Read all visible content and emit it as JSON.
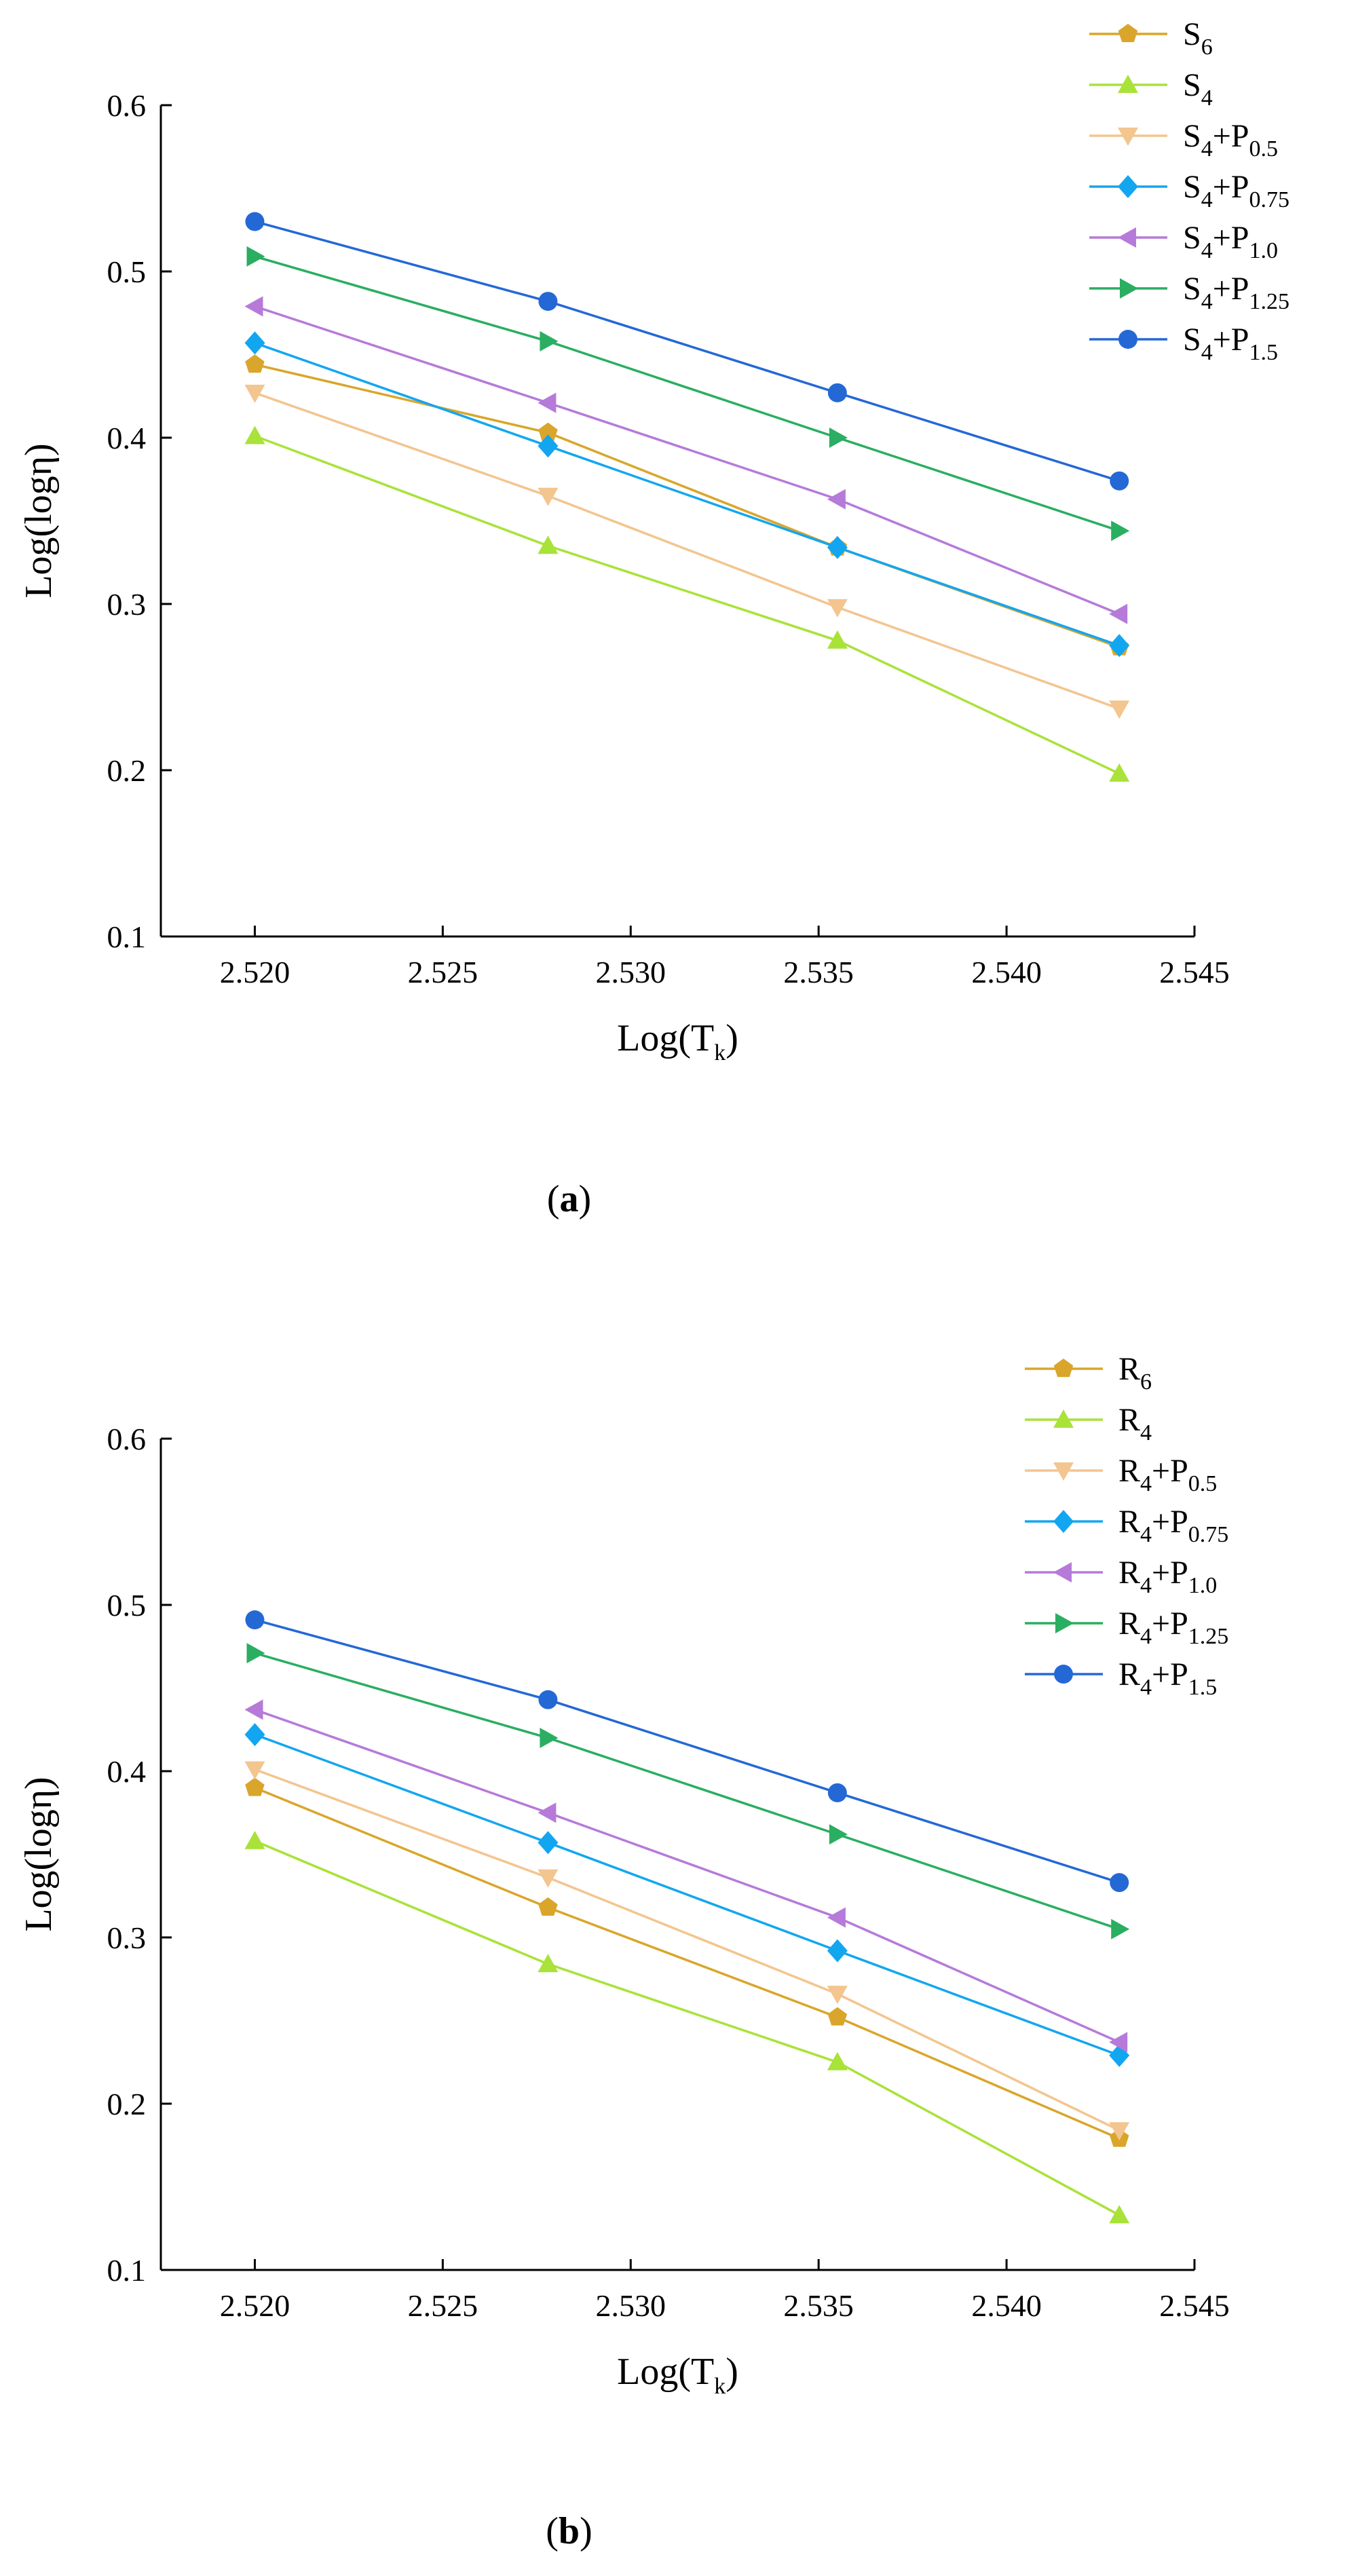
{
  "colors": {
    "orange": "#d9a62b",
    "lime": "#a9e239",
    "peach": "#f3c58f",
    "cyan": "#13a6f0",
    "purple": "#b67ad9",
    "green": "#2aae61",
    "blue": "#2468d6"
  },
  "chart_data": [
    {
      "type": "line",
      "panel": "a",
      "panel_label": "a",
      "xlabel": {
        "main": "Log(T",
        "sub": "k",
        "close": ")"
      },
      "ylabel": "Log(logη)",
      "xlim": [
        2.5175,
        2.545
      ],
      "ylim": [
        0.1,
        0.6
      ],
      "x_ticks": [
        "2.520",
        "2.525",
        "2.530",
        "2.535",
        "2.540",
        "2.545"
      ],
      "y_ticks": [
        "0.1",
        "0.2",
        "0.3",
        "0.4",
        "0.5",
        "0.6"
      ],
      "x": [
        2.52,
        2.5278,
        2.5355,
        2.543
      ],
      "series": [
        {
          "name": "S6",
          "base": "S",
          "base_sub": "6",
          "plus": "",
          "p_sub": "",
          "color_key": "orange",
          "marker": "pentagon",
          "values": [
            0.444,
            0.403,
            0.334,
            0.274
          ]
        },
        {
          "name": "S4",
          "base": "S",
          "base_sub": "4",
          "plus": "",
          "p_sub": "",
          "color_key": "lime",
          "marker": "triangle-up",
          "values": [
            0.401,
            0.335,
            0.278,
            0.198
          ]
        },
        {
          "name": "S4+P0.5",
          "base": "S",
          "base_sub": "4",
          "plus": "+P",
          "p_sub": "0.5",
          "color_key": "peach",
          "marker": "triangle-down",
          "values": [
            0.427,
            0.365,
            0.298,
            0.237
          ]
        },
        {
          "name": "S4+P0.75",
          "base": "S",
          "base_sub": "4",
          "plus": "+P",
          "p_sub": "0.75",
          "color_key": "cyan",
          "marker": "diamond",
          "values": [
            0.457,
            0.395,
            0.334,
            0.275
          ]
        },
        {
          "name": "S4+P1.0",
          "base": "S",
          "base_sub": "4",
          "plus": "+P",
          "p_sub": "1.0",
          "color_key": "purple",
          "marker": "triangle-left",
          "values": [
            0.479,
            0.421,
            0.363,
            0.294
          ]
        },
        {
          "name": "S4+P1.25",
          "base": "S",
          "base_sub": "4",
          "plus": "+P",
          "p_sub": "1.25",
          "color_key": "green",
          "marker": "triangle-right",
          "values": [
            0.509,
            0.458,
            0.4,
            0.344
          ]
        },
        {
          "name": "S4+P1.5",
          "base": "S",
          "base_sub": "4",
          "plus": "+P",
          "p_sub": "1.5",
          "color_key": "blue",
          "marker": "circle",
          "values": [
            0.53,
            0.482,
            0.427,
            0.374
          ]
        }
      ],
      "legend_position": "top-right"
    },
    {
      "type": "line",
      "panel": "b",
      "panel_label": "b",
      "xlabel": {
        "main": "Log(T",
        "sub": "k",
        "close": ")"
      },
      "ylabel": "Log(logη)",
      "xlim": [
        2.5175,
        2.545
      ],
      "ylim": [
        0.1,
        0.6
      ],
      "x_ticks": [
        "2.520",
        "2.525",
        "2.530",
        "2.535",
        "2.540",
        "2.545"
      ],
      "y_ticks": [
        "0.1",
        "0.2",
        "0.3",
        "0.4",
        "0.5",
        "0.6"
      ],
      "x": [
        2.52,
        2.5278,
        2.5355,
        2.543
      ],
      "series": [
        {
          "name": "R6",
          "base": "R",
          "base_sub": "6",
          "plus": "",
          "p_sub": "",
          "color_key": "orange",
          "marker": "pentagon",
          "values": [
            0.39,
            0.318,
            0.252,
            0.179
          ]
        },
        {
          "name": "R4",
          "base": "R",
          "base_sub": "4",
          "plus": "",
          "p_sub": "",
          "color_key": "lime",
          "marker": "triangle-up",
          "values": [
            0.358,
            0.284,
            0.225,
            0.133
          ]
        },
        {
          "name": "R4+P0.5",
          "base": "R",
          "base_sub": "4",
          "plus": "+P",
          "p_sub": "0.5",
          "color_key": "peach",
          "marker": "triangle-down",
          "values": [
            0.401,
            0.336,
            0.266,
            0.184
          ]
        },
        {
          "name": "R4+P0.75",
          "base": "R",
          "base_sub": "4",
          "plus": "+P",
          "p_sub": "0.75",
          "color_key": "cyan",
          "marker": "diamond",
          "values": [
            0.422,
            0.357,
            0.292,
            0.229
          ]
        },
        {
          "name": "R4+P1.0",
          "base": "R",
          "base_sub": "4",
          "plus": "+P",
          "p_sub": "1.0",
          "color_key": "purple",
          "marker": "triangle-left",
          "values": [
            0.437,
            0.375,
            0.312,
            0.237
          ]
        },
        {
          "name": "R4+P1.25",
          "base": "R",
          "base_sub": "4",
          "plus": "+P",
          "p_sub": "1.25",
          "color_key": "green",
          "marker": "triangle-right",
          "values": [
            0.471,
            0.42,
            0.362,
            0.305
          ]
        },
        {
          "name": "R4+P1.5",
          "base": "R",
          "base_sub": "4",
          "plus": "+P",
          "p_sub": "1.5",
          "color_key": "blue",
          "marker": "circle",
          "values": [
            0.491,
            0.443,
            0.387,
            0.333
          ]
        }
      ],
      "legend_position": "top-right"
    }
  ]
}
